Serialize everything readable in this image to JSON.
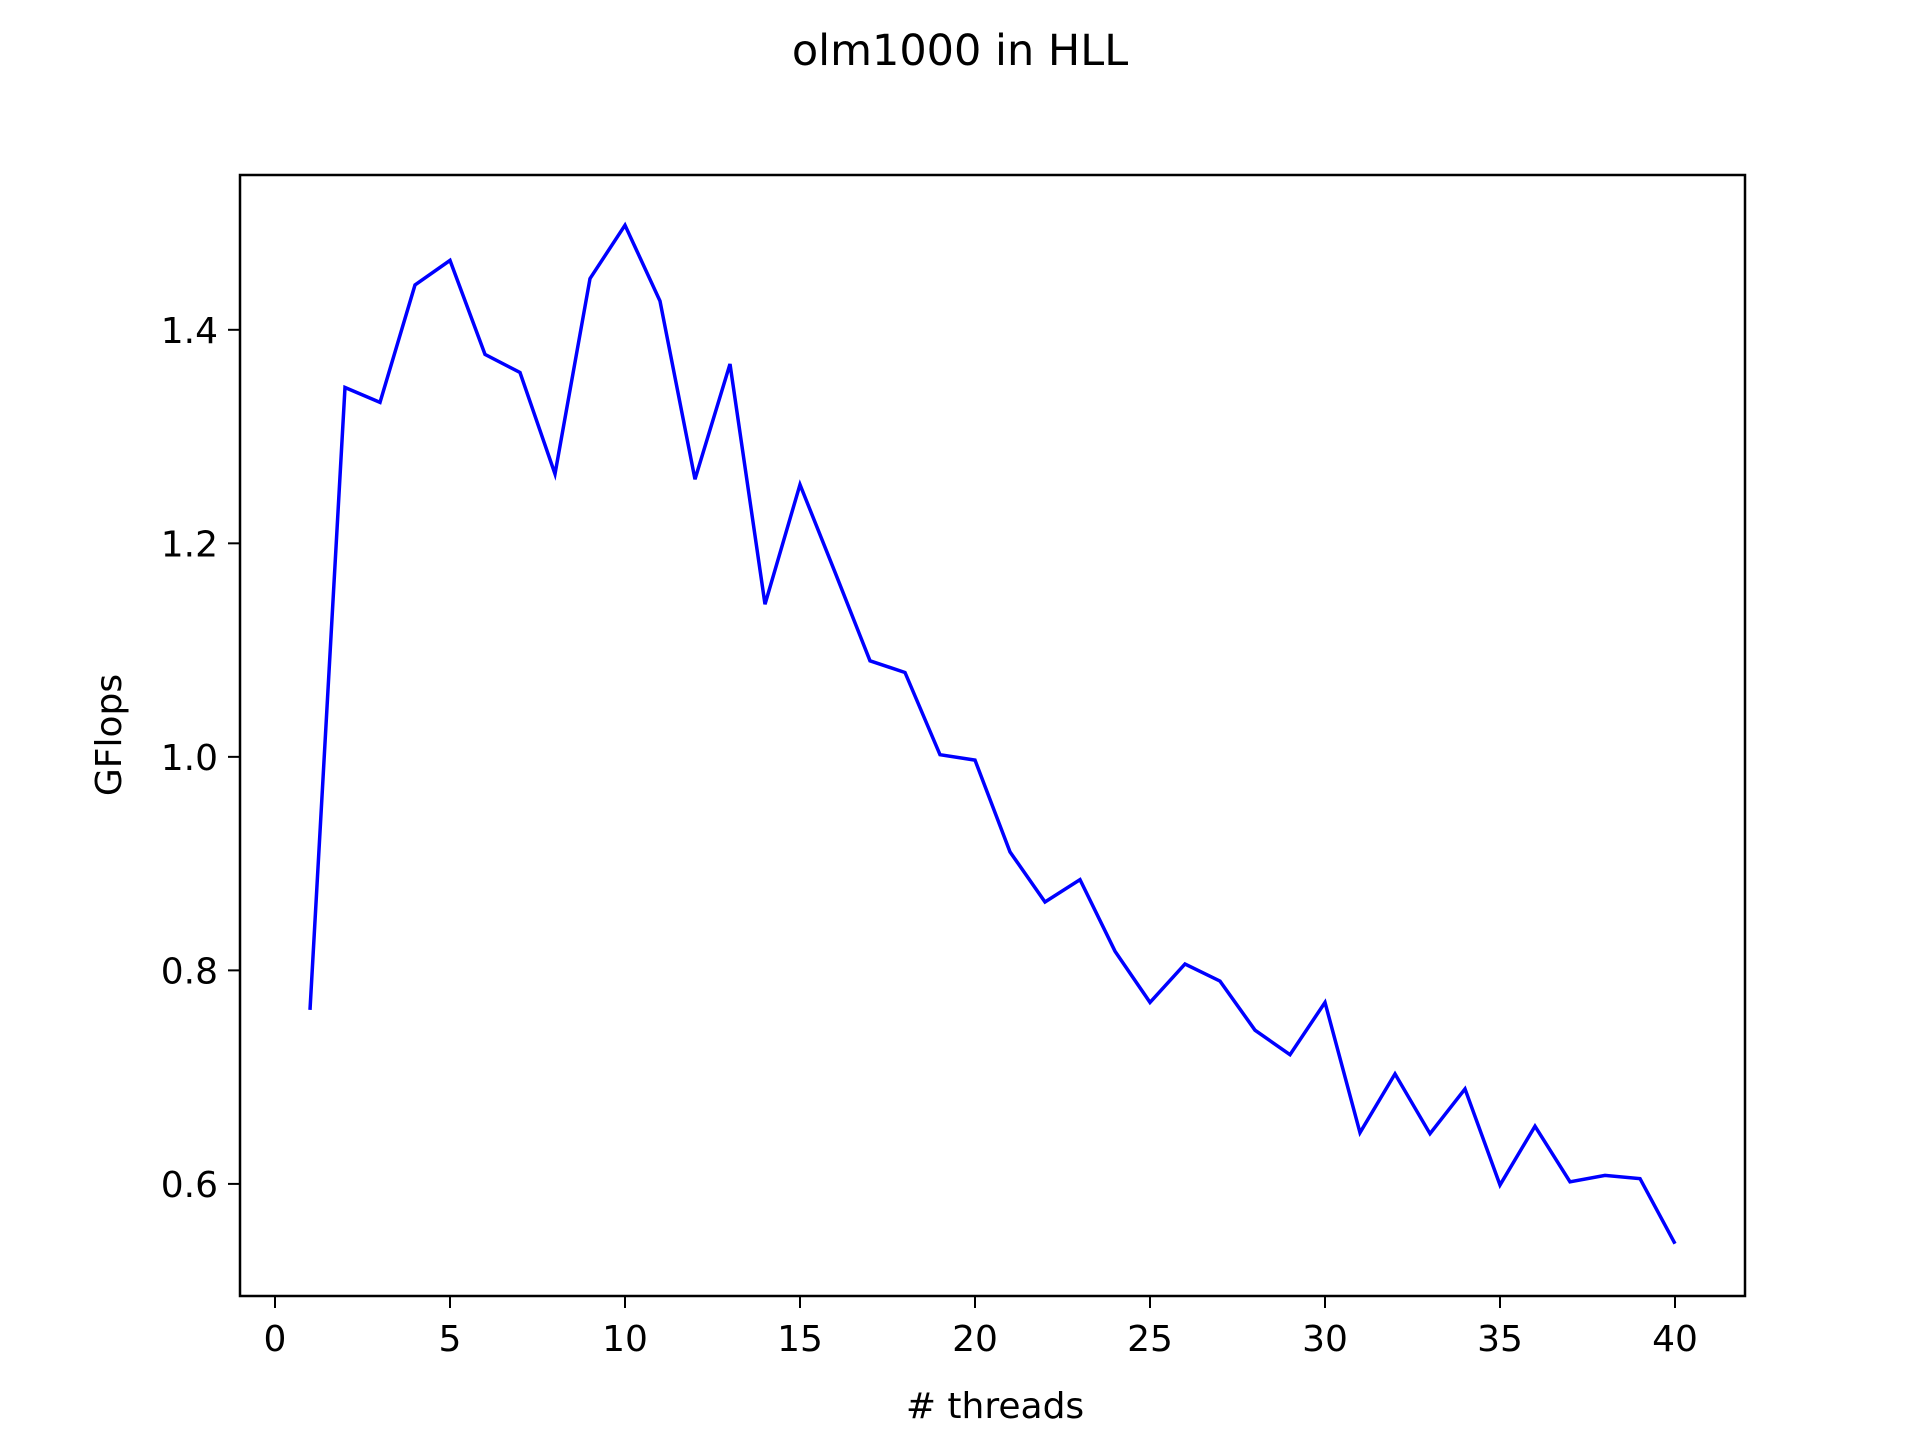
{
  "chart_data": {
    "type": "line",
    "title": "olm1000 in HLL",
    "xlabel": "# threads",
    "ylabel": "GFlops",
    "xlim": [
      -1,
      42
    ],
    "ylim": [
      0.495,
      1.545
    ],
    "xticks": [
      0,
      5,
      10,
      15,
      20,
      25,
      30,
      35,
      40
    ],
    "xtick_labels": [
      "0",
      "5",
      "10",
      "15",
      "20",
      "25",
      "30",
      "35",
      "40"
    ],
    "yticks": [
      0.6,
      0.8,
      1.0,
      1.2,
      1.4
    ],
    "ytick_labels": [
      "0.6",
      "0.8",
      "1.0",
      "1.2",
      "1.4"
    ],
    "grid": false,
    "series": [
      {
        "name": "GFlops",
        "color": "#0000ff",
        "x": [
          1,
          2,
          3,
          4,
          5,
          6,
          7,
          8,
          9,
          10,
          11,
          12,
          13,
          14,
          15,
          16,
          17,
          18,
          19,
          20,
          21,
          22,
          23,
          24,
          25,
          26,
          27,
          28,
          29,
          30,
          31,
          32,
          33,
          34,
          35,
          36,
          37,
          38,
          39,
          40
        ],
        "values": [
          0.763,
          1.346,
          1.332,
          1.442,
          1.465,
          1.377,
          1.36,
          1.265,
          1.448,
          1.498,
          1.427,
          1.26,
          1.368,
          1.143,
          1.255,
          1.173,
          1.09,
          1.079,
          1.002,
          0.997,
          0.911,
          0.864,
          0.885,
          0.818,
          0.77,
          0.806,
          0.79,
          0.744,
          0.721,
          0.77,
          0.648,
          0.703,
          0.647,
          0.689,
          0.599,
          0.654,
          0.602,
          0.608,
          0.605,
          0.544
        ]
      }
    ]
  }
}
